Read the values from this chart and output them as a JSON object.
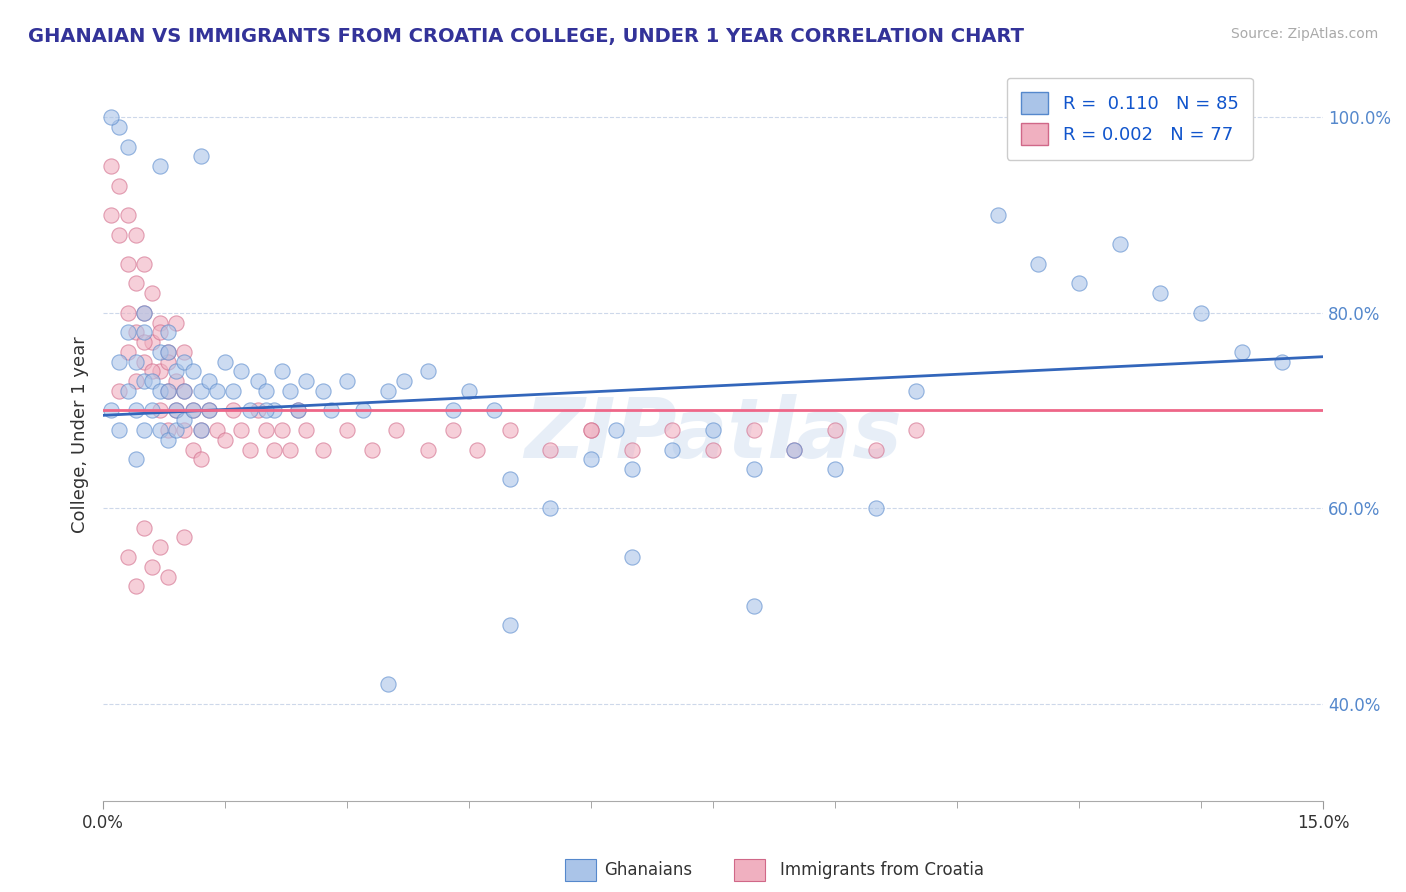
{
  "title": "GHANAIAN VS IMMIGRANTS FROM CROATIA COLLEGE, UNDER 1 YEAR CORRELATION CHART",
  "source_text": "Source: ZipAtlas.com",
  "ylabel": "College, Under 1 year",
  "xlim": [
    0.0,
    0.15
  ],
  "ylim": [
    0.3,
    1.05
  ],
  "ytick_labels": [
    "40.0%",
    "60.0%",
    "80.0%",
    "100.0%"
  ],
  "ytick_positions": [
    0.4,
    0.6,
    0.8,
    1.0
  ],
  "legend_r1": "R =  0.110",
  "legend_n1": "N = 85",
  "legend_r2": "R = 0.002",
  "legend_n2": "N = 77",
  "color_blue": "#aac4e8",
  "color_blue_edge": "#5588cc",
  "color_pink": "#f0b0c0",
  "color_pink_edge": "#d06888",
  "color_blue_line": "#3366bb",
  "color_pink_line": "#ee6688",
  "legend_label1": "Ghanaians",
  "legend_label2": "Immigrants from Croatia",
  "watermark": "ZIPatlas",
  "background_color": "#ffffff",
  "grid_color": "#c8d4e8",
  "blue_trend_x": [
    0.0,
    0.15
  ],
  "blue_trend_y": [
    0.695,
    0.755
  ],
  "pink_trend_x": [
    0.0,
    0.15
  ],
  "pink_trend_y": [
    0.7,
    0.7
  ],
  "blue_scatter_x": [
    0.001,
    0.002,
    0.002,
    0.003,
    0.003,
    0.004,
    0.004,
    0.004,
    0.005,
    0.005,
    0.005,
    0.006,
    0.006,
    0.007,
    0.007,
    0.007,
    0.008,
    0.008,
    0.008,
    0.009,
    0.009,
    0.009,
    0.01,
    0.01,
    0.01,
    0.011,
    0.011,
    0.012,
    0.012,
    0.013,
    0.013,
    0.014,
    0.015,
    0.016,
    0.017,
    0.018,
    0.019,
    0.02,
    0.021,
    0.022,
    0.023,
    0.024,
    0.025,
    0.027,
    0.028,
    0.03,
    0.032,
    0.035,
    0.037,
    0.04,
    0.043,
    0.045,
    0.048,
    0.05,
    0.055,
    0.06,
    0.063,
    0.065,
    0.07,
    0.075,
    0.08,
    0.085,
    0.09,
    0.095,
    0.1,
    0.11,
    0.115,
    0.12,
    0.125,
    0.13,
    0.135,
    0.14,
    0.145,
    0.08,
    0.065,
    0.05,
    0.035,
    0.02,
    0.012,
    0.007,
    0.003,
    0.002,
    0.001,
    0.008,
    0.005
  ],
  "blue_scatter_y": [
    0.7,
    0.68,
    0.75,
    0.72,
    0.78,
    0.65,
    0.7,
    0.75,
    0.68,
    0.73,
    0.78,
    0.7,
    0.73,
    0.68,
    0.72,
    0.76,
    0.67,
    0.72,
    0.76,
    0.7,
    0.68,
    0.74,
    0.69,
    0.72,
    0.75,
    0.7,
    0.74,
    0.68,
    0.72,
    0.7,
    0.73,
    0.72,
    0.75,
    0.72,
    0.74,
    0.7,
    0.73,
    0.72,
    0.7,
    0.74,
    0.72,
    0.7,
    0.73,
    0.72,
    0.7,
    0.73,
    0.7,
    0.72,
    0.73,
    0.74,
    0.7,
    0.72,
    0.7,
    0.63,
    0.6,
    0.65,
    0.68,
    0.64,
    0.66,
    0.68,
    0.64,
    0.66,
    0.64,
    0.6,
    0.72,
    0.9,
    0.85,
    0.83,
    0.87,
    0.82,
    0.8,
    0.76,
    0.75,
    0.5,
    0.55,
    0.48,
    0.42,
    0.7,
    0.96,
    0.95,
    0.97,
    0.99,
    1.0,
    0.78,
    0.8
  ],
  "pink_scatter_x": [
    0.001,
    0.001,
    0.002,
    0.002,
    0.003,
    0.003,
    0.003,
    0.004,
    0.004,
    0.004,
    0.005,
    0.005,
    0.005,
    0.006,
    0.006,
    0.007,
    0.007,
    0.007,
    0.008,
    0.008,
    0.008,
    0.009,
    0.009,
    0.01,
    0.01,
    0.011,
    0.011,
    0.012,
    0.012,
    0.013,
    0.014,
    0.015,
    0.016,
    0.017,
    0.018,
    0.019,
    0.02,
    0.021,
    0.022,
    0.023,
    0.024,
    0.025,
    0.027,
    0.03,
    0.033,
    0.036,
    0.04,
    0.043,
    0.046,
    0.05,
    0.055,
    0.06,
    0.065,
    0.07,
    0.075,
    0.08,
    0.085,
    0.09,
    0.095,
    0.1,
    0.002,
    0.003,
    0.004,
    0.005,
    0.006,
    0.007,
    0.008,
    0.009,
    0.01,
    0.003,
    0.004,
    0.005,
    0.006,
    0.007,
    0.008,
    0.01,
    0.06
  ],
  "pink_scatter_y": [
    0.9,
    0.95,
    0.88,
    0.93,
    0.85,
    0.9,
    0.8,
    0.88,
    0.83,
    0.78,
    0.85,
    0.8,
    0.75,
    0.82,
    0.77,
    0.79,
    0.74,
    0.7,
    0.76,
    0.72,
    0.68,
    0.73,
    0.7,
    0.72,
    0.68,
    0.7,
    0.66,
    0.68,
    0.65,
    0.7,
    0.68,
    0.67,
    0.7,
    0.68,
    0.66,
    0.7,
    0.68,
    0.66,
    0.68,
    0.66,
    0.7,
    0.68,
    0.66,
    0.68,
    0.66,
    0.68,
    0.66,
    0.68,
    0.66,
    0.68,
    0.66,
    0.68,
    0.66,
    0.68,
    0.66,
    0.68,
    0.66,
    0.68,
    0.66,
    0.68,
    0.72,
    0.76,
    0.73,
    0.77,
    0.74,
    0.78,
    0.75,
    0.79,
    0.76,
    0.55,
    0.52,
    0.58,
    0.54,
    0.56,
    0.53,
    0.57,
    0.68
  ]
}
